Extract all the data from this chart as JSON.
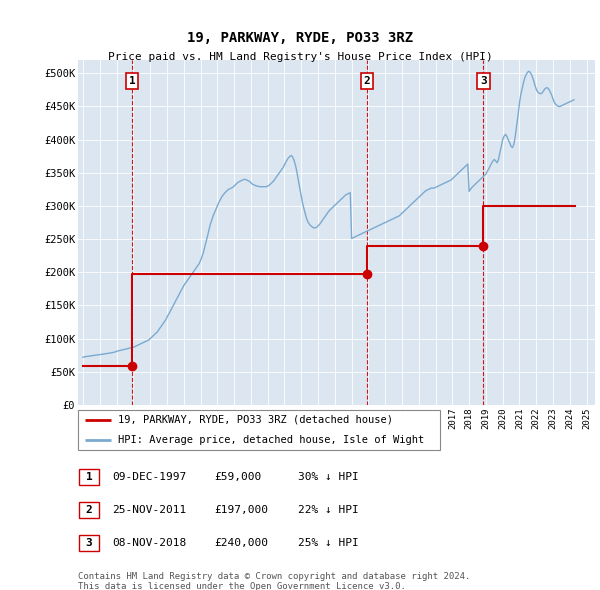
{
  "title": "19, PARKWAY, RYDE, PO33 3RZ",
  "subtitle": "Price paid vs. HM Land Registry's House Price Index (HPI)",
  "footer": "Contains HM Land Registry data © Crown copyright and database right 2024.\nThis data is licensed under the Open Government Licence v3.0.",
  "legend_entry1": "19, PARKWAY, RYDE, PO33 3RZ (detached house)",
  "legend_entry2": "HPI: Average price, detached house, Isle of Wight",
  "sale_color": "#cc0000",
  "hpi_color": "#7aaad0",
  "background_color": "#dce6f1",
  "sale_transactions": [
    {
      "date": 1997.93,
      "price": 59000,
      "label": "1"
    },
    {
      "date": 2011.9,
      "price": 197000,
      "label": "2"
    },
    {
      "date": 2018.85,
      "price": 240000,
      "label": "3"
    }
  ],
  "vline_dates": [
    1997.93,
    2011.9,
    2018.85
  ],
  "ylim": [
    0,
    520000
  ],
  "yticks": [
    0,
    50000,
    100000,
    150000,
    200000,
    250000,
    300000,
    350000,
    400000,
    450000,
    500000
  ],
  "ytick_labels": [
    "£0",
    "£50K",
    "£100K",
    "£150K",
    "£200K",
    "£250K",
    "£300K",
    "£350K",
    "£400K",
    "£450K",
    "£500K"
  ],
  "xlim_start": 1994.7,
  "xlim_end": 2025.5,
  "table_rows": [
    {
      "num": "1",
      "date": "09-DEC-1997",
      "price": "£59,000",
      "note": "30% ↓ HPI"
    },
    {
      "num": "2",
      "date": "25-NOV-2011",
      "price": "£197,000",
      "note": "22% ↓ HPI"
    },
    {
      "num": "3",
      "date": "08-NOV-2018",
      "price": "£240,000",
      "note": "25% ↓ HPI"
    }
  ],
  "hpi_years": [
    1995.0,
    1995.08,
    1995.17,
    1995.25,
    1995.33,
    1995.42,
    1995.5,
    1995.58,
    1995.67,
    1995.75,
    1995.83,
    1995.92,
    1996.0,
    1996.08,
    1996.17,
    1996.25,
    1996.33,
    1996.42,
    1996.5,
    1996.58,
    1996.67,
    1996.75,
    1996.83,
    1996.92,
    1997.0,
    1997.08,
    1997.17,
    1997.25,
    1997.33,
    1997.42,
    1997.5,
    1997.58,
    1997.67,
    1997.75,
    1997.83,
    1997.92,
    1998.0,
    1998.08,
    1998.17,
    1998.25,
    1998.33,
    1998.42,
    1998.5,
    1998.58,
    1998.67,
    1998.75,
    1998.83,
    1998.92,
    1999.0,
    1999.08,
    1999.17,
    1999.25,
    1999.33,
    1999.42,
    1999.5,
    1999.58,
    1999.67,
    1999.75,
    1999.83,
    1999.92,
    2000.0,
    2000.08,
    2000.17,
    2000.25,
    2000.33,
    2000.42,
    2000.5,
    2000.58,
    2000.67,
    2000.75,
    2000.83,
    2000.92,
    2001.0,
    2001.08,
    2001.17,
    2001.25,
    2001.33,
    2001.42,
    2001.5,
    2001.58,
    2001.67,
    2001.75,
    2001.83,
    2001.92,
    2002.0,
    2002.08,
    2002.17,
    2002.25,
    2002.33,
    2002.42,
    2002.5,
    2002.58,
    2002.67,
    2002.75,
    2002.83,
    2002.92,
    2003.0,
    2003.08,
    2003.17,
    2003.25,
    2003.33,
    2003.42,
    2003.5,
    2003.58,
    2003.67,
    2003.75,
    2003.83,
    2003.92,
    2004.0,
    2004.08,
    2004.17,
    2004.25,
    2004.33,
    2004.42,
    2004.5,
    2004.58,
    2004.67,
    2004.75,
    2004.83,
    2004.92,
    2005.0,
    2005.08,
    2005.17,
    2005.25,
    2005.33,
    2005.42,
    2005.5,
    2005.58,
    2005.67,
    2005.75,
    2005.83,
    2005.92,
    2006.0,
    2006.08,
    2006.17,
    2006.25,
    2006.33,
    2006.42,
    2006.5,
    2006.58,
    2006.67,
    2006.75,
    2006.83,
    2006.92,
    2007.0,
    2007.08,
    2007.17,
    2007.25,
    2007.33,
    2007.42,
    2007.5,
    2007.58,
    2007.67,
    2007.75,
    2007.83,
    2007.92,
    2008.0,
    2008.08,
    2008.17,
    2008.25,
    2008.33,
    2008.42,
    2008.5,
    2008.58,
    2008.67,
    2008.75,
    2008.83,
    2008.92,
    2009.0,
    2009.08,
    2009.17,
    2009.25,
    2009.33,
    2009.42,
    2009.5,
    2009.58,
    2009.67,
    2009.75,
    2009.83,
    2009.92,
    2010.0,
    2010.08,
    2010.17,
    2010.25,
    2010.33,
    2010.42,
    2010.5,
    2010.58,
    2010.67,
    2010.75,
    2010.83,
    2010.92,
    2011.0,
    2011.08,
    2011.17,
    2011.25,
    2011.33,
    2011.42,
    2011.5,
    2011.58,
    2011.67,
    2011.75,
    2011.83,
    2011.92,
    2012.0,
    2012.08,
    2012.17,
    2012.25,
    2012.33,
    2012.42,
    2012.5,
    2012.58,
    2012.67,
    2012.75,
    2012.83,
    2012.92,
    2013.0,
    2013.08,
    2013.17,
    2013.25,
    2013.33,
    2013.42,
    2013.5,
    2013.58,
    2013.67,
    2013.75,
    2013.83,
    2013.92,
    2014.0,
    2014.08,
    2014.17,
    2014.25,
    2014.33,
    2014.42,
    2014.5,
    2014.58,
    2014.67,
    2014.75,
    2014.83,
    2014.92,
    2015.0,
    2015.08,
    2015.17,
    2015.25,
    2015.33,
    2015.42,
    2015.5,
    2015.58,
    2015.67,
    2015.75,
    2015.83,
    2015.92,
    2016.0,
    2016.08,
    2016.17,
    2016.25,
    2016.33,
    2016.42,
    2016.5,
    2016.58,
    2016.67,
    2016.75,
    2016.83,
    2016.92,
    2017.0,
    2017.08,
    2017.17,
    2017.25,
    2017.33,
    2017.42,
    2017.5,
    2017.58,
    2017.67,
    2017.75,
    2017.83,
    2017.92,
    2018.0,
    2018.08,
    2018.17,
    2018.25,
    2018.33,
    2018.42,
    2018.5,
    2018.58,
    2018.67,
    2018.75,
    2018.83,
    2018.92,
    2019.0,
    2019.08,
    2019.17,
    2019.25,
    2019.33,
    2019.42,
    2019.5,
    2019.58,
    2019.67,
    2019.75,
    2019.83,
    2019.92,
    2020.0,
    2020.08,
    2020.17,
    2020.25,
    2020.33,
    2020.42,
    2020.5,
    2020.58,
    2020.67,
    2020.75,
    2020.83,
    2020.92,
    2021.0,
    2021.08,
    2021.17,
    2021.25,
    2021.33,
    2021.42,
    2021.5,
    2021.58,
    2021.67,
    2021.75,
    2021.83,
    2021.92,
    2022.0,
    2022.08,
    2022.17,
    2022.25,
    2022.33,
    2022.42,
    2022.5,
    2022.58,
    2022.67,
    2022.75,
    2022.83,
    2022.92,
    2023.0,
    2023.08,
    2023.17,
    2023.25,
    2023.33,
    2023.42,
    2023.5,
    2023.58,
    2023.67,
    2023.75,
    2023.83,
    2023.92,
    2024.0,
    2024.08,
    2024.17,
    2024.25
  ],
  "hpi_values": [
    72000,
    72500,
    73000,
    73200,
    73500,
    74000,
    74200,
    74500,
    74800,
    75000,
    75200,
    75500,
    76000,
    76200,
    76500,
    77000,
    77200,
    77500,
    78000,
    78200,
    78500,
    79000,
    79500,
    80000,
    81000,
    81500,
    82000,
    82500,
    83000,
    83500,
    84000,
    84500,
    85000,
    85500,
    86000,
    86500,
    87000,
    88000,
    89000,
    90000,
    91000,
    92000,
    93000,
    94000,
    95000,
    96000,
    97000,
    98000,
    100000,
    102000,
    104000,
    106000,
    108000,
    110000,
    113000,
    116000,
    119000,
    122000,
    125000,
    128000,
    132000,
    136000,
    140000,
    144000,
    148000,
    152000,
    156000,
    160000,
    164000,
    168000,
    172000,
    176000,
    180000,
    183000,
    186000,
    189000,
    192000,
    195000,
    198000,
    201000,
    204000,
    207000,
    210000,
    213000,
    218000,
    223000,
    230000,
    238000,
    246000,
    255000,
    264000,
    272000,
    279000,
    285000,
    290000,
    295000,
    300000,
    305000,
    309000,
    313000,
    316000,
    319000,
    321000,
    323000,
    325000,
    326000,
    327000,
    328000,
    330000,
    332000,
    334000,
    336000,
    337000,
    338000,
    339000,
    340000,
    340000,
    339000,
    338000,
    337000,
    335000,
    333000,
    332000,
    331000,
    330000,
    330000,
    329000,
    329000,
    329000,
    329000,
    329000,
    329000,
    330000,
    331000,
    333000,
    335000,
    337000,
    340000,
    343000,
    346000,
    349000,
    352000,
    355000,
    358000,
    362000,
    366000,
    370000,
    373000,
    375000,
    376000,
    373000,
    368000,
    360000,
    350000,
    338000,
    326000,
    315000,
    304000,
    295000,
    287000,
    280000,
    275000,
    272000,
    270000,
    268000,
    267000,
    267000,
    268000,
    270000,
    272000,
    275000,
    278000,
    281000,
    284000,
    287000,
    290000,
    293000,
    295000,
    297000,
    299000,
    301000,
    303000,
    305000,
    307000,
    309000,
    311000,
    313000,
    315000,
    317000,
    318000,
    319000,
    320000,
    251000,
    252000,
    253000,
    254000,
    255000,
    256000,
    257000,
    258000,
    259000,
    260000,
    261000,
    262000,
    263000,
    264000,
    265000,
    266000,
    267000,
    268000,
    269000,
    270000,
    271000,
    272000,
    273000,
    274000,
    275000,
    276000,
    277000,
    278000,
    279000,
    280000,
    281000,
    282000,
    283000,
    284000,
    285000,
    287000,
    289000,
    291000,
    293000,
    295000,
    297000,
    299000,
    301000,
    303000,
    305000,
    307000,
    309000,
    311000,
    313000,
    315000,
    317000,
    319000,
    321000,
    323000,
    324000,
    325000,
    326000,
    327000,
    327000,
    327000,
    328000,
    329000,
    330000,
    331000,
    332000,
    333000,
    334000,
    335000,
    336000,
    337000,
    338000,
    339000,
    341000,
    343000,
    345000,
    347000,
    349000,
    351000,
    353000,
    355000,
    357000,
    359000,
    361000,
    363000,
    322000,
    325000,
    328000,
    330000,
    332000,
    334000,
    336000,
    338000,
    340000,
    342000,
    344000,
    346000,
    348000,
    352000,
    356000,
    360000,
    364000,
    368000,
    370000,
    368000,
    365000,
    370000,
    380000,
    390000,
    400000,
    405000,
    408000,
    405000,
    400000,
    395000,
    390000,
    388000,
    393000,
    405000,
    420000,
    438000,
    455000,
    468000,
    478000,
    487000,
    494000,
    499000,
    502000,
    503000,
    500000,
    496000,
    490000,
    482000,
    476000,
    472000,
    470000,
    469000,
    470000,
    473000,
    476000,
    478000,
    478000,
    476000,
    472000,
    467000,
    461000,
    456000,
    453000,
    451000,
    450000,
    450000,
    451000,
    452000,
    453000,
    454000,
    455000,
    456000,
    457000,
    458000,
    459000,
    460000
  ],
  "red_line_x": [
    1995.0,
    1997.93,
    1997.93,
    2011.9,
    2011.9,
    2018.85,
    2018.85,
    2024.3
  ],
  "red_line_y": [
    59000,
    59000,
    197000,
    197000,
    240000,
    240000,
    300000,
    300000
  ]
}
